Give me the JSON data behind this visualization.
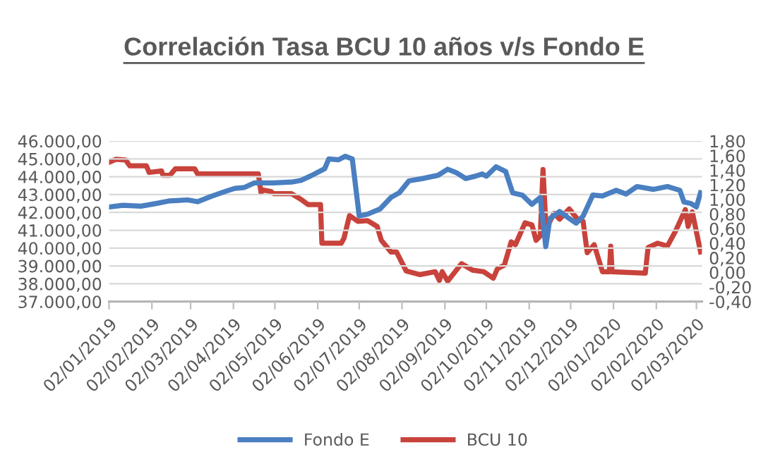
{
  "chart_data": {
    "type": "line",
    "title": "Correlación Tasa BCU 10 años v/s Fondo E",
    "legend": "bottom",
    "grid": "y",
    "line_style": "solid",
    "marker": "none",
    "xlim": [
      "2019-01-02",
      "2020-03-06"
    ],
    "xticks": [
      {
        "value": "2019-01-02",
        "label": "02/01/2019"
      },
      {
        "value": "2019-02-02",
        "label": "02/02/2019"
      },
      {
        "value": "2019-03-02",
        "label": "02/03/2019"
      },
      {
        "value": "2019-04-02",
        "label": "02/04/2019"
      },
      {
        "value": "2019-05-02",
        "label": "02/05/2019"
      },
      {
        "value": "2019-06-02",
        "label": "02/06/2019"
      },
      {
        "value": "2019-07-02",
        "label": "02/07/2019"
      },
      {
        "value": "2019-08-02",
        "label": "02/08/2019"
      },
      {
        "value": "2019-09-02",
        "label": "02/09/2019"
      },
      {
        "value": "2019-10-02",
        "label": "02/10/2019"
      },
      {
        "value": "2019-11-02",
        "label": "02/11/2019"
      },
      {
        "value": "2019-12-02",
        "label": "02/12/2019"
      },
      {
        "value": "2020-01-02",
        "label": "02/01/2020"
      },
      {
        "value": "2020-02-02",
        "label": "02/02/2020"
      },
      {
        "value": "2020-03-02",
        "label": "02/03/2020"
      }
    ],
    "ylim": [
      37000,
      46000
    ],
    "yticks": [
      {
        "value": 37000,
        "label": "37.000,00"
      },
      {
        "value": 38000,
        "label": "38.000,00"
      },
      {
        "value": 39000,
        "label": "39.000,00"
      },
      {
        "value": 40000,
        "label": "40.000,00"
      },
      {
        "value": 41000,
        "label": "41.000,00"
      },
      {
        "value": 42000,
        "label": "42.000,00"
      },
      {
        "value": 43000,
        "label": "43.000,00"
      },
      {
        "value": 44000,
        "label": "44.000,00"
      },
      {
        "value": 45000,
        "label": "45.000,00"
      },
      {
        "value": 46000,
        "label": "46.000,00"
      }
    ],
    "y2lim": [
      -0.4,
      1.8
    ],
    "y2ticks": [
      {
        "value": -0.4,
        "label": "-0,40"
      },
      {
        "value": -0.2,
        "label": "-0,20"
      },
      {
        "value": 0,
        "label": "0,00"
      },
      {
        "value": 0.2,
        "label": "0,20"
      },
      {
        "value": 0.4,
        "label": "0,40"
      },
      {
        "value": 0.6,
        "label": "0,60"
      },
      {
        "value": 0.8,
        "label": "0,80"
      },
      {
        "value": 1.0,
        "label": "1,00"
      },
      {
        "value": 1.2,
        "label": "1,20"
      },
      {
        "value": 1.4,
        "label": "1,40"
      },
      {
        "value": 1.6,
        "label": "1,60"
      },
      {
        "value": 1.8,
        "label": "1,80"
      }
    ],
    "series": [
      {
        "name": "Fondo E",
        "color": "#4a7fc1",
        "x": [
          "2019-01-02",
          "2019-01-12",
          "2019-01-25",
          "2019-02-05",
          "2019-02-15",
          "2019-02-28",
          "2019-03-07",
          "2019-03-17",
          "2019-03-28",
          "2019-04-03",
          "2019-04-10",
          "2019-04-17",
          "2019-05-01",
          "2019-05-14",
          "2019-05-21",
          "2019-05-28",
          "2019-06-07",
          "2019-06-10",
          "2019-06-17",
          "2019-06-22",
          "2019-06-27",
          "2019-07-02",
          "2019-07-08",
          "2019-07-17",
          "2019-07-25",
          "2019-07-31",
          "2019-08-07",
          "2019-08-17",
          "2019-08-28",
          "2019-09-04",
          "2019-09-10",
          "2019-09-17",
          "2019-09-24",
          "2019-09-29",
          "2019-10-02",
          "2019-10-09",
          "2019-10-16",
          "2019-10-21",
          "2019-10-28",
          "2019-11-04",
          "2019-11-10",
          "2019-11-14",
          "2019-11-17",
          "2019-11-24",
          "2019-12-01",
          "2019-12-06",
          "2019-12-11",
          "2019-12-18",
          "2019-12-25",
          "2020-01-04",
          "2020-01-11",
          "2020-01-19",
          "2020-01-31",
          "2020-02-10",
          "2020-02-19",
          "2020-02-22",
          "2020-02-27",
          "2020-03-02",
          "2020-03-05"
        ],
        "values": [
          42300,
          42400,
          42350,
          42500,
          42650,
          42700,
          42600,
          42900,
          43200,
          43350,
          43400,
          43650,
          43650,
          43700,
          43800,
          44050,
          44450,
          45000,
          44950,
          45150,
          45000,
          41800,
          41900,
          42190,
          42840,
          43100,
          43770,
          43900,
          44080,
          44420,
          44240,
          43900,
          44030,
          44160,
          44030,
          44560,
          44290,
          43100,
          42970,
          42450,
          42840,
          40080,
          41660,
          42050,
          41660,
          41400,
          41790,
          42970,
          42920,
          43240,
          43030,
          43450,
          43290,
          43450,
          43240,
          42580,
          42500,
          42310,
          43100
        ]
      },
      {
        "name": "BCU 10",
        "color": "#c8433c",
        "axis": "y2",
        "x": [
          "2019-01-02",
          "2019-01-07",
          "2019-01-14",
          "2019-01-17",
          "2019-01-25",
          "2019-01-29",
          "2019-01-31",
          "2019-02-09",
          "2019-02-10",
          "2019-02-15",
          "2019-02-19",
          "2019-03-05",
          "2019-03-07",
          "2019-04-20",
          "2019-04-22",
          "2019-04-23",
          "2019-04-29",
          "2019-05-01",
          "2019-05-14",
          "2019-05-21",
          "2019-05-26",
          "2019-06-04",
          "2019-06-05",
          "2019-06-19",
          "2019-06-21",
          "2019-06-25",
          "2019-07-01",
          "2019-07-08",
          "2019-07-15",
          "2019-07-18",
          "2019-07-25",
          "2019-07-29",
          "2019-08-05",
          "2019-08-15",
          "2019-08-26",
          "2019-08-29",
          "2019-08-31",
          "2019-09-04",
          "2019-09-14",
          "2019-09-22",
          "2019-09-30",
          "2019-10-07",
          "2019-10-10",
          "2019-10-15",
          "2019-10-20",
          "2019-10-23",
          "2019-10-30",
          "2019-11-04",
          "2019-11-07",
          "2019-11-10",
          "2019-11-12",
          "2019-11-14",
          "2019-11-17",
          "2019-11-20",
          "2019-11-24",
          "2019-12-01",
          "2019-12-07",
          "2019-12-11",
          "2019-12-14",
          "2019-12-19",
          "2019-12-25",
          "2019-12-30",
          "2019-12-31",
          "2020-01-01",
          "2020-01-25",
          "2020-01-27",
          "2020-02-03",
          "2020-02-10",
          "2020-02-16",
          "2020-02-23",
          "2020-02-25",
          "2020-02-28",
          "2020-03-05"
        ],
        "values": [
          1.51,
          1.55,
          1.54,
          1.46,
          1.46,
          1.46,
          1.37,
          1.39,
          1.33,
          1.33,
          1.42,
          1.42,
          1.35,
          1.35,
          1.09,
          1.13,
          1.11,
          1.08,
          1.08,
          1.0,
          0.93,
          0.93,
          0.4,
          0.4,
          0.47,
          0.78,
          0.7,
          0.71,
          0.63,
          0.44,
          0.28,
          0.28,
          0.02,
          -0.03,
          0.01,
          -0.11,
          0.01,
          -0.12,
          0.12,
          0.03,
          0.01,
          -0.08,
          0.05,
          0.1,
          0.42,
          0.38,
          0.68,
          0.65,
          0.44,
          0.5,
          1.41,
          0.67,
          0.7,
          0.81,
          0.73,
          0.87,
          0.73,
          0.7,
          0.27,
          0.38,
          0.01,
          0.01,
          0.36,
          0.01,
          -0.01,
          0.34,
          0.4,
          0.36,
          0.57,
          0.86,
          0.63,
          0.83,
          0.28
        ]
      }
    ]
  }
}
